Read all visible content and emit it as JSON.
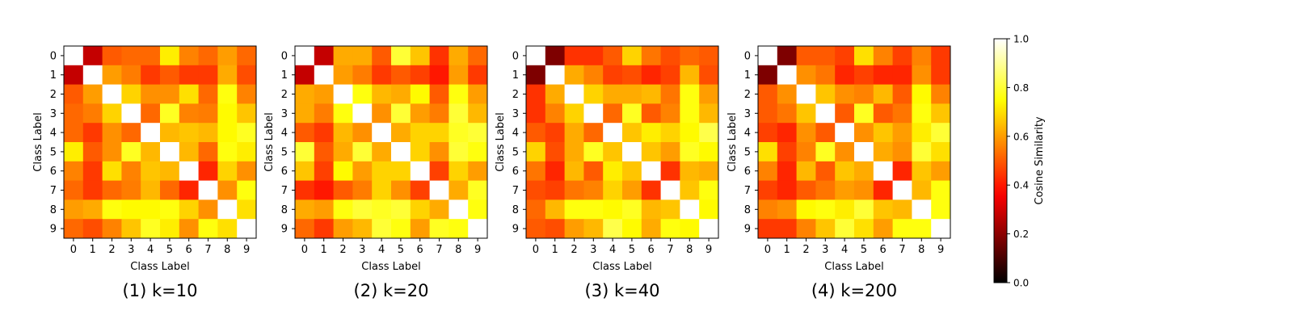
{
  "colorbar": {
    "label": "Cosine Similarity",
    "ticks": [
      "0.0",
      "0.2",
      "0.4",
      "0.6",
      "0.8",
      "1.0"
    ],
    "colormap": "hot",
    "range": [
      0.0,
      1.0
    ]
  },
  "chart_data": [
    {
      "type": "heatmap",
      "title": "(1) k=10",
      "xlabel": "Class Label",
      "ylabel": "Class Label",
      "categories": [
        "0",
        "1",
        "2",
        "3",
        "4",
        "5",
        "6",
        "7",
        "8",
        "9"
      ],
      "vlim": [
        0,
        1
      ],
      "values": [
        [
          1.0,
          0.28,
          0.5,
          0.52,
          0.52,
          0.72,
          0.56,
          0.52,
          0.6,
          0.52
        ],
        [
          0.28,
          1.0,
          0.6,
          0.55,
          0.45,
          0.5,
          0.45,
          0.45,
          0.62,
          0.48
        ],
        [
          0.5,
          0.6,
          1.0,
          0.68,
          0.58,
          0.58,
          0.7,
          0.52,
          0.76,
          0.56
        ],
        [
          0.52,
          0.55,
          0.68,
          1.0,
          0.52,
          0.78,
          0.56,
          0.55,
          0.74,
          0.66
        ],
        [
          0.52,
          0.45,
          0.58,
          0.52,
          1.0,
          0.64,
          0.66,
          0.64,
          0.74,
          0.78
        ],
        [
          0.72,
          0.5,
          0.58,
          0.78,
          0.64,
          1.0,
          0.64,
          0.52,
          0.76,
          0.72
        ],
        [
          0.56,
          0.45,
          0.7,
          0.56,
          0.66,
          0.64,
          1.0,
          0.42,
          0.68,
          0.58
        ],
        [
          0.52,
          0.45,
          0.52,
          0.55,
          0.64,
          0.52,
          0.42,
          1.0,
          0.58,
          0.76
        ],
        [
          0.6,
          0.62,
          0.76,
          0.74,
          0.74,
          0.76,
          0.68,
          0.58,
          1.0,
          0.7
        ],
        [
          0.52,
          0.48,
          0.56,
          0.66,
          0.78,
          0.72,
          0.58,
          0.76,
          0.7,
          1.0
        ]
      ]
    },
    {
      "type": "heatmap",
      "title": "(2) k=20",
      "xlabel": "Class Label",
      "ylabel": "Class Label",
      "categories": [
        "0",
        "1",
        "2",
        "3",
        "4",
        "5",
        "6",
        "7",
        "8",
        "9"
      ],
      "vlim": [
        0,
        1
      ],
      "values": [
        [
          1.0,
          0.28,
          0.62,
          0.62,
          0.5,
          0.8,
          0.66,
          0.44,
          0.62,
          0.52
        ],
        [
          0.28,
          1.0,
          0.6,
          0.55,
          0.45,
          0.5,
          0.46,
          0.4,
          0.6,
          0.45
        ],
        [
          0.62,
          0.6,
          1.0,
          0.76,
          0.64,
          0.62,
          0.74,
          0.5,
          0.76,
          0.6
        ],
        [
          0.62,
          0.55,
          0.76,
          1.0,
          0.58,
          0.8,
          0.6,
          0.55,
          0.8,
          0.64
        ],
        [
          0.5,
          0.45,
          0.64,
          0.58,
          1.0,
          0.62,
          0.68,
          0.68,
          0.78,
          0.8
        ],
        [
          0.8,
          0.5,
          0.62,
          0.8,
          0.62,
          1.0,
          0.68,
          0.58,
          0.8,
          0.76
        ],
        [
          0.66,
          0.46,
          0.74,
          0.6,
          0.68,
          0.68,
          1.0,
          0.46,
          0.68,
          0.6
        ],
        [
          0.44,
          0.4,
          0.5,
          0.55,
          0.68,
          0.58,
          0.46,
          1.0,
          0.62,
          0.78
        ],
        [
          0.62,
          0.6,
          0.76,
          0.8,
          0.78,
          0.8,
          0.68,
          0.62,
          1.0,
          0.76
        ],
        [
          0.52,
          0.45,
          0.6,
          0.64,
          0.8,
          0.76,
          0.6,
          0.78,
          0.76,
          1.0
        ]
      ]
    },
    {
      "type": "heatmap",
      "title": "(3) k=40",
      "xlabel": "Class Label",
      "ylabel": "Class Label",
      "categories": [
        "0",
        "1",
        "2",
        "3",
        "4",
        "5",
        "6",
        "7",
        "8",
        "9"
      ],
      "vlim": [
        0,
        1
      ],
      "values": [
        [
          1.0,
          0.18,
          0.44,
          0.44,
          0.5,
          0.68,
          0.54,
          0.48,
          0.52,
          0.5
        ],
        [
          0.18,
          1.0,
          0.62,
          0.56,
          0.46,
          0.48,
          0.42,
          0.46,
          0.64,
          0.48
        ],
        [
          0.44,
          0.62,
          1.0,
          0.68,
          0.62,
          0.62,
          0.64,
          0.54,
          0.76,
          0.6
        ],
        [
          0.44,
          0.56,
          0.68,
          1.0,
          0.52,
          0.78,
          0.5,
          0.56,
          0.76,
          0.64
        ],
        [
          0.5,
          0.46,
          0.62,
          0.52,
          1.0,
          0.66,
          0.72,
          0.68,
          0.74,
          0.82
        ],
        [
          0.68,
          0.48,
          0.62,
          0.78,
          0.66,
          1.0,
          0.66,
          0.6,
          0.78,
          0.74
        ],
        [
          0.54,
          0.42,
          0.64,
          0.5,
          0.72,
          0.66,
          1.0,
          0.44,
          0.64,
          0.62
        ],
        [
          0.48,
          0.46,
          0.54,
          0.56,
          0.68,
          0.6,
          0.44,
          1.0,
          0.66,
          0.76
        ],
        [
          0.52,
          0.64,
          0.76,
          0.76,
          0.74,
          0.78,
          0.64,
          0.66,
          1.0,
          0.74
        ],
        [
          0.5,
          0.48,
          0.6,
          0.64,
          0.82,
          0.74,
          0.62,
          0.76,
          0.74,
          1.0
        ]
      ]
    },
    {
      "type": "heatmap",
      "title": "(4) k=200",
      "xlabel": "Class Label",
      "ylabel": "Class Label",
      "categories": [
        "0",
        "1",
        "2",
        "3",
        "4",
        "5",
        "6",
        "7",
        "8",
        "9"
      ],
      "vlim": [
        0,
        1
      ],
      "values": [
        [
          1.0,
          0.18,
          0.5,
          0.5,
          0.46,
          0.7,
          0.56,
          0.46,
          0.56,
          0.45
        ],
        [
          0.18,
          1.0,
          0.58,
          0.54,
          0.42,
          0.46,
          0.42,
          0.42,
          0.58,
          0.45
        ],
        [
          0.5,
          0.58,
          1.0,
          0.66,
          0.58,
          0.56,
          0.64,
          0.5,
          0.74,
          0.56
        ],
        [
          0.5,
          0.54,
          0.66,
          1.0,
          0.5,
          0.78,
          0.5,
          0.54,
          0.76,
          0.66
        ],
        [
          0.46,
          0.42,
          0.58,
          0.5,
          1.0,
          0.58,
          0.66,
          0.6,
          0.72,
          0.8
        ],
        [
          0.7,
          0.46,
          0.56,
          0.78,
          0.58,
          1.0,
          0.62,
          0.58,
          0.8,
          0.7
        ],
        [
          0.56,
          0.42,
          0.64,
          0.5,
          0.66,
          0.62,
          1.0,
          0.42,
          0.66,
          0.6
        ],
        [
          0.46,
          0.42,
          0.5,
          0.54,
          0.6,
          0.58,
          0.42,
          1.0,
          0.64,
          0.76
        ],
        [
          0.56,
          0.58,
          0.74,
          0.76,
          0.72,
          0.8,
          0.66,
          0.64,
          1.0,
          0.76
        ],
        [
          0.45,
          0.45,
          0.56,
          0.66,
          0.8,
          0.7,
          0.6,
          0.76,
          0.76,
          1.0
        ]
      ]
    }
  ]
}
